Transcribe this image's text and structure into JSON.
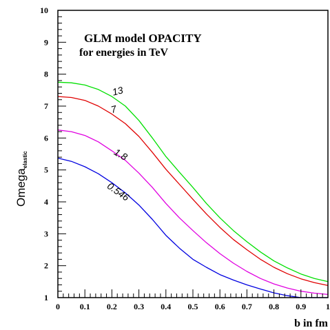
{
  "chart_data": {
    "type": "line",
    "title": "GLM model OPACITY",
    "subtitle": "for energies in TeV",
    "xlabel": "b in fm",
    "ylabel": "Omega",
    "ylabel_subscript": "elastic",
    "xlim": [
      0,
      1
    ],
    "ylim": [
      1,
      10
    ],
    "xticks": [
      "0",
      "0.1",
      "0.2",
      "0.3",
      "0.4",
      "0.5",
      "0.6",
      "0.7",
      "0.8",
      "0.9",
      "1"
    ],
    "yticks": [
      "1",
      "2",
      "3",
      "4",
      "5",
      "6",
      "7",
      "8",
      "9",
      "10"
    ],
    "grid": false,
    "legend": "inline labels on curves",
    "x": [
      0,
      0.05,
      0.1,
      0.15,
      0.2,
      0.25,
      0.3,
      0.35,
      0.4,
      0.45,
      0.5,
      0.55,
      0.6,
      0.65,
      0.7,
      0.75,
      0.8,
      0.85,
      0.9,
      0.95,
      1.0
    ],
    "series": [
      {
        "name": "13",
        "color": "#00e000",
        "values": [
          7.75,
          7.73,
          7.66,
          7.52,
          7.3,
          7.0,
          6.55,
          6.0,
          5.42,
          4.93,
          4.45,
          3.95,
          3.5,
          3.1,
          2.75,
          2.43,
          2.15,
          1.93,
          1.74,
          1.6,
          1.5
        ]
      },
      {
        "name": "7",
        "color": "#e00000",
        "values": [
          7.3,
          7.27,
          7.18,
          7.0,
          6.75,
          6.45,
          6.05,
          5.55,
          5.02,
          4.55,
          4.08,
          3.62,
          3.2,
          2.82,
          2.5,
          2.2,
          1.95,
          1.75,
          1.59,
          1.47,
          1.38
        ]
      },
      {
        "name": "1.8",
        "color": "#e000e0",
        "values": [
          6.25,
          6.2,
          6.08,
          5.88,
          5.6,
          5.3,
          4.9,
          4.45,
          3.95,
          3.5,
          3.1,
          2.72,
          2.38,
          2.08,
          1.82,
          1.6,
          1.43,
          1.3,
          1.2,
          1.14,
          1.1
        ]
      },
      {
        "name": "0.546",
        "color": "#0000e0",
        "values": [
          5.37,
          5.27,
          5.1,
          4.88,
          4.6,
          4.28,
          3.9,
          3.45,
          2.95,
          2.55,
          2.2,
          1.95,
          1.72,
          1.55,
          1.4,
          1.27,
          1.15,
          1.06,
          1.0,
          1.0,
          1.0
        ]
      }
    ],
    "annotations": [
      {
        "text": "13",
        "x": 0.205,
        "y": 7.33,
        "angle": -14
      },
      {
        "text": "7",
        "x": 0.2,
        "y": 6.78,
        "angle": -14
      },
      {
        "text": "1.8",
        "x": 0.205,
        "y": 5.5,
        "angle": 30
      },
      {
        "text": "0.546",
        "x": 0.18,
        "y": 4.45,
        "angle": 35
      }
    ]
  }
}
